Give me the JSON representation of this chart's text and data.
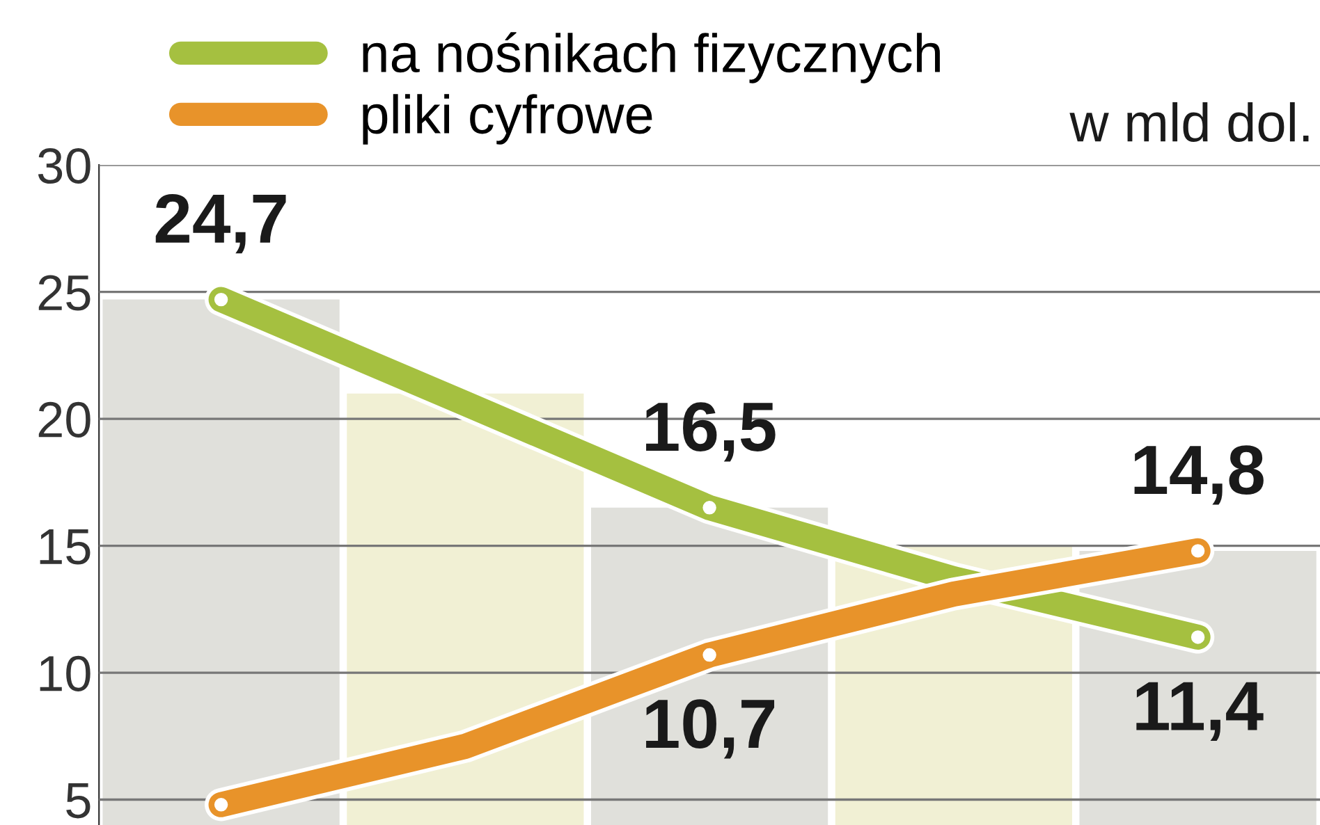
{
  "chart_data": {
    "type": "line",
    "categories": [
      null,
      null,
      null,
      null,
      null
    ],
    "series": [
      {
        "type": "bar",
        "colors": [
          "#e0e0db",
          "#f1f0d4",
          "#e0e0db",
          "#f1f0d4",
          "#e0e0db"
        ],
        "values": [
          24.7,
          21,
          16.5,
          15,
          14.8
        ]
      },
      {
        "name": "na nośnikach fizycznych",
        "color": "#a5c040",
        "values": [
          24.7,
          20.6,
          16.5,
          13.7,
          11.4
        ],
        "value_labels": [
          "24,7",
          null,
          "16,5",
          null,
          "11,4"
        ]
      },
      {
        "name": "pliki cyfrowe",
        "color": "#e8932a",
        "values": [
          4.8,
          7.1,
          10.7,
          13.1,
          14.8
        ],
        "value_labels": [
          null,
          null,
          "10,7",
          null,
          "14,8"
        ]
      }
    ],
    "annotations": [
      "w mld dol."
    ],
    "ylim": [
      4,
      30
    ],
    "yticks": [
      5,
      10,
      15,
      20,
      25,
      30
    ],
    "grid": "y",
    "legend": "top left",
    "marker": "circle"
  }
}
